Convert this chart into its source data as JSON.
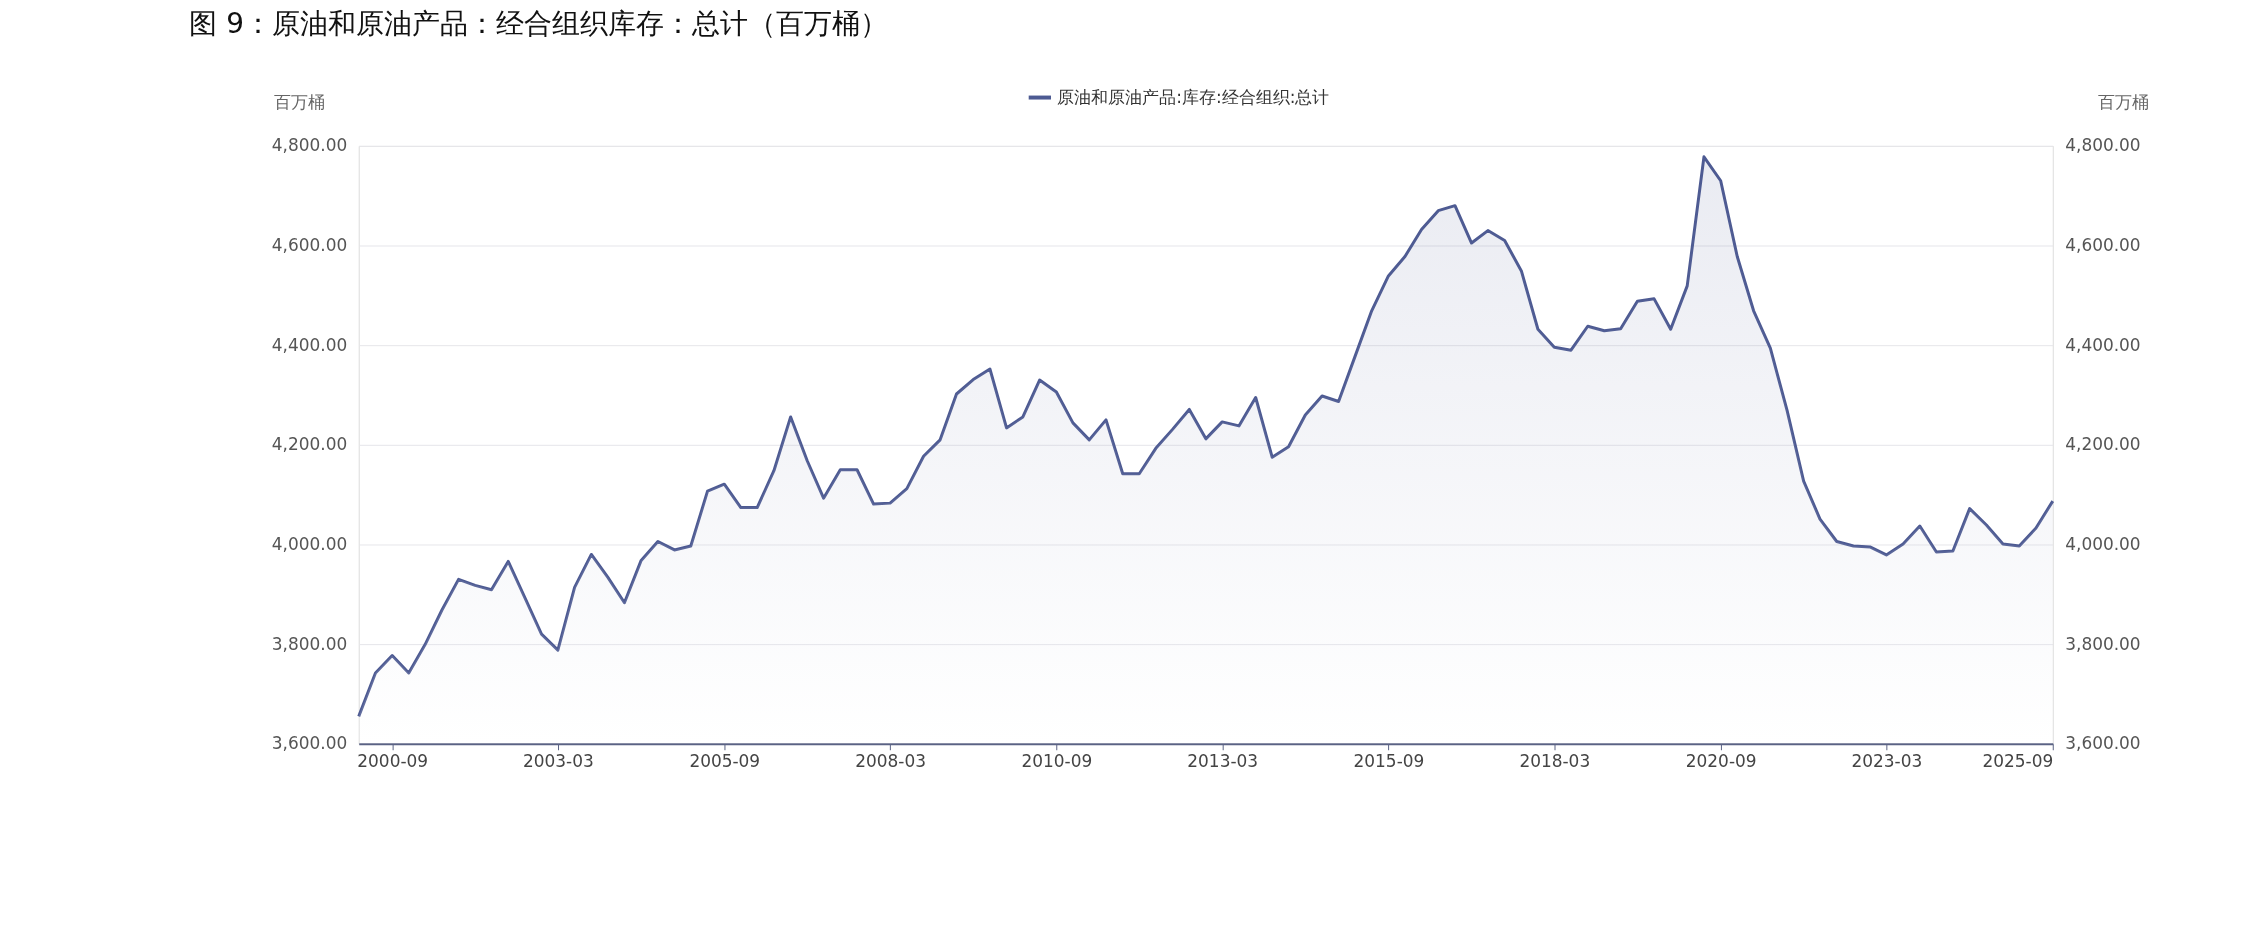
{
  "chart_data": {
    "type": "area",
    "title": "图 9：原油和原油产品：经合组织库存：总计（百万桶）",
    "ylabel": "百万桶",
    "y2label": "百万桶",
    "legend": "top",
    "grid": "y",
    "x": [
      "2000-03",
      "2000-06",
      "2000-09",
      "2000-12",
      "2001-03",
      "2001-06",
      "2001-09",
      "2001-12",
      "2002-03",
      "2002-06",
      "2002-09",
      "2002-12",
      "2003-03",
      "2003-06",
      "2003-09",
      "2003-12",
      "2004-03",
      "2004-06",
      "2004-09",
      "2004-12",
      "2005-03",
      "2005-06",
      "2005-09",
      "2005-12",
      "2006-03",
      "2006-06",
      "2006-09",
      "2006-12",
      "2007-03",
      "2007-06",
      "2007-09",
      "2007-12",
      "2008-03",
      "2008-06",
      "2008-09",
      "2008-12",
      "2009-03",
      "2009-06",
      "2009-09",
      "2009-12",
      "2010-03",
      "2010-06",
      "2010-09",
      "2010-12",
      "2011-03",
      "2011-06",
      "2011-09",
      "2011-12",
      "2012-03",
      "2012-06",
      "2012-09",
      "2012-12",
      "2013-03",
      "2013-06",
      "2013-09",
      "2013-12",
      "2014-03",
      "2014-06",
      "2014-09",
      "2014-12",
      "2015-03",
      "2015-06",
      "2015-09",
      "2015-12",
      "2016-03",
      "2016-06",
      "2016-09",
      "2016-12",
      "2017-03",
      "2017-06",
      "2017-09",
      "2017-12",
      "2018-03",
      "2018-06",
      "2018-09",
      "2018-12",
      "2019-03",
      "2019-06",
      "2019-09",
      "2019-12",
      "2020-03",
      "2020-06",
      "2020-09",
      "2020-12",
      "2021-03",
      "2021-06",
      "2021-09",
      "2021-12",
      "2022-03",
      "2022-06",
      "2022-09",
      "2022-12",
      "2023-03",
      "2023-06",
      "2023-09",
      "2023-12",
      "2024-03",
      "2024-06",
      "2024-09",
      "2024-12",
      "2025-03",
      "2025-06",
      "2025-09"
    ],
    "series": [
      {
        "name": "原油和原油产品:库存:经合组织:总计",
        "color": "#4d5a92",
        "values": [
          3655,
          3742,
          3777,
          3742,
          3799,
          3868,
          3930,
          3918,
          3909,
          3966,
          3893,
          3820,
          3788,
          3914,
          3980,
          3934,
          3883,
          3968,
          4006,
          3989,
          3997,
          4107,
          4121,
          4074,
          4074,
          4148,
          4256,
          4168,
          4093,
          4150,
          4150,
          4081,
          4083,
          4112,
          4177,
          4210,
          4302,
          4331,
          4352,
          4234,
          4256,
          4330,
          4306,
          4244,
          4210,
          4250,
          4142,
          4142,
          4193,
          4231,
          4271,
          4212,
          4246,
          4238,
          4295,
          4175,
          4196,
          4260,
          4298,
          4287,
          4377,
          4469,
          4539,
          4578,
          4632,
          4670,
          4680,
          4605,
          4630,
          4610,
          4549,
          4432,
          4396,
          4390,
          4438,
          4429,
          4433,
          4488,
          4493,
          4432,
          4519,
          4778,
          4730,
          4578,
          4469,
          4394,
          4269,
          4127,
          4051,
          4006,
          3997,
          3995,
          3979,
          4001,
          4037,
          3985,
          3987,
          4072,
          4039,
          4001,
          3997,
          4033,
          4087
        ]
      }
    ],
    "xlim": [
      "2000-03",
      "2025-09"
    ],
    "xticks": [
      "2000-09",
      "2003-03",
      "2005-09",
      "2008-03",
      "2010-09",
      "2013-03",
      "2015-09",
      "2018-03",
      "2020-09",
      "2023-03",
      "2025-09"
    ],
    "ylim": [
      3600,
      4800
    ],
    "yticks": [
      {
        "value": 3600,
        "label": "3,600.00"
      },
      {
        "value": 3800,
        "label": "3,800.00"
      },
      {
        "value": 4000,
        "label": "4,000.00"
      },
      {
        "value": 4200,
        "label": "4,200.00"
      },
      {
        "value": 4400,
        "label": "4,400.00"
      },
      {
        "value": 4600,
        "label": "4,600.00"
      },
      {
        "value": 4800,
        "label": "4,800.00"
      }
    ],
    "y2lim": [
      3600,
      4800
    ],
    "y2ticks": [
      {
        "value": 3600,
        "label": "3,600.00"
      },
      {
        "value": 3800,
        "label": "3,800.00"
      },
      {
        "value": 4000,
        "label": "4,000.00"
      },
      {
        "value": 4200,
        "label": "4,200.00"
      },
      {
        "value": 4400,
        "label": "4,400.00"
      },
      {
        "value": 4600,
        "label": "4,600.00"
      },
      {
        "value": 4800,
        "label": "4,800.00"
      }
    ]
  }
}
